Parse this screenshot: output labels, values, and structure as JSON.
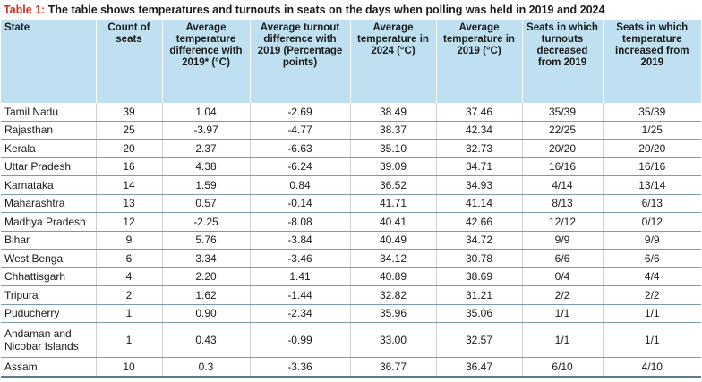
{
  "caption": {
    "label": "Table 1:",
    "text": " The table shows temperatures and turnouts in seats on the days when polling was held in 2019 and 2024"
  },
  "columns": [
    "State",
    "Count of seats",
    "Average temperature difference with 2019* (°C)",
    "Average turnout difference with 2019 (Percentage points)",
    "Average temperature in 2024 (°C)",
    "Average temperature in 2019 (°C)",
    "Seats in which turnouts decreased from 2019",
    "Seats in which temperature increased from 2019"
  ],
  "rows": [
    [
      "Tamil Nadu",
      "39",
      "1.04",
      "-2.69",
      "38.49",
      "37.46",
      "35/39",
      "35/39"
    ],
    [
      "Rajasthan",
      "25",
      "-3.97",
      "-4.77",
      "38.37",
      "42.34",
      "22/25",
      "1/25"
    ],
    [
      "Kerala",
      "20",
      "2.37",
      "-6.63",
      "35.10",
      "32.73",
      "20/20",
      "20/20"
    ],
    [
      "Uttar Pradesh",
      "16",
      "4.38",
      "-6.24",
      "39.09",
      "34.71",
      "16/16",
      "16/16"
    ],
    [
      "Karnataka",
      "14",
      "1.59",
      "0.84",
      "36.52",
      "34.93",
      "4/14",
      "13/14"
    ],
    [
      "Maharashtra",
      "13",
      "0.57",
      "-0.14",
      "41.71",
      "41.14",
      "8/13",
      "6/13"
    ],
    [
      "Madhya Pradesh",
      "12",
      "-2.25",
      "-8.08",
      "40.41",
      "42.66",
      "12/12",
      "0/12"
    ],
    [
      "Bihar",
      "9",
      "5.76",
      "-3.84",
      "40.49",
      "34.72",
      "9/9",
      "9/9"
    ],
    [
      "West Bengal",
      "6",
      "3.34",
      "-3.46",
      "34.12",
      "30.78",
      "6/6",
      "6/6"
    ],
    [
      "Chhattisgarh",
      "4",
      "2.20",
      "1.41",
      "40.89",
      "38.69",
      "0/4",
      "4/4"
    ],
    [
      "Tripura",
      "2",
      "1.62",
      "-1.44",
      "32.82",
      "31.21",
      "2/2",
      "2/2"
    ],
    [
      "Puducherry",
      "1",
      "0.90",
      "-2.34",
      "35.96",
      "35.06",
      "1/1",
      "1/1"
    ],
    [
      "Andaman and Nicobar Islands",
      "1",
      "0.43",
      "-0.99",
      "33.00",
      "32.57",
      "1/1",
      "1/1"
    ],
    [
      "Assam",
      "10",
      "0.3",
      "-3.36",
      "36.77",
      "36.47",
      "6/10",
      "4/10"
    ]
  ]
}
